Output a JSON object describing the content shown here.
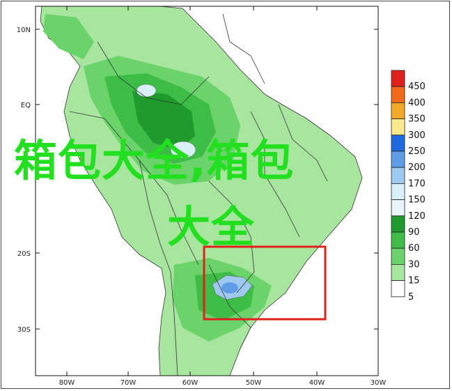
{
  "map": {
    "lat_labels": [
      "10N",
      "EQ",
      "20S",
      "30S"
    ],
    "lon_labels": [
      "80W",
      "70W",
      "60W",
      "50W",
      "40W",
      "30W"
    ]
  },
  "legend": {
    "items": [
      {
        "label": "450",
        "color": "#e0201a"
      },
      {
        "label": "400",
        "color": "#f06a1a"
      },
      {
        "label": "350",
        "color": "#f4a82a"
      },
      {
        "label": "300",
        "color": "#fde98e"
      },
      {
        "label": "250",
        "color": "#1e6be0"
      },
      {
        "label": "200",
        "color": "#5f9de8"
      },
      {
        "label": "170",
        "color": "#9ec9f0"
      },
      {
        "label": "150",
        "color": "#d8f0f8"
      },
      {
        "label": "120",
        "color": "#e8f4f8"
      },
      {
        "label": "90",
        "color": "#1f9a2c"
      },
      {
        "label": "60",
        "color": "#3ebd46"
      },
      {
        "label": "30",
        "color": "#6ad36a"
      },
      {
        "label": "15",
        "color": "#a8e6a0"
      },
      {
        "label": "5",
        "color": "#ffffff"
      }
    ]
  },
  "overlay": {
    "line1": "箱包大全,箱包",
    "line2": "大全"
  },
  "colors": {
    "overlay_text": "#22e01f",
    "highlight_box": "#e0201a"
  }
}
